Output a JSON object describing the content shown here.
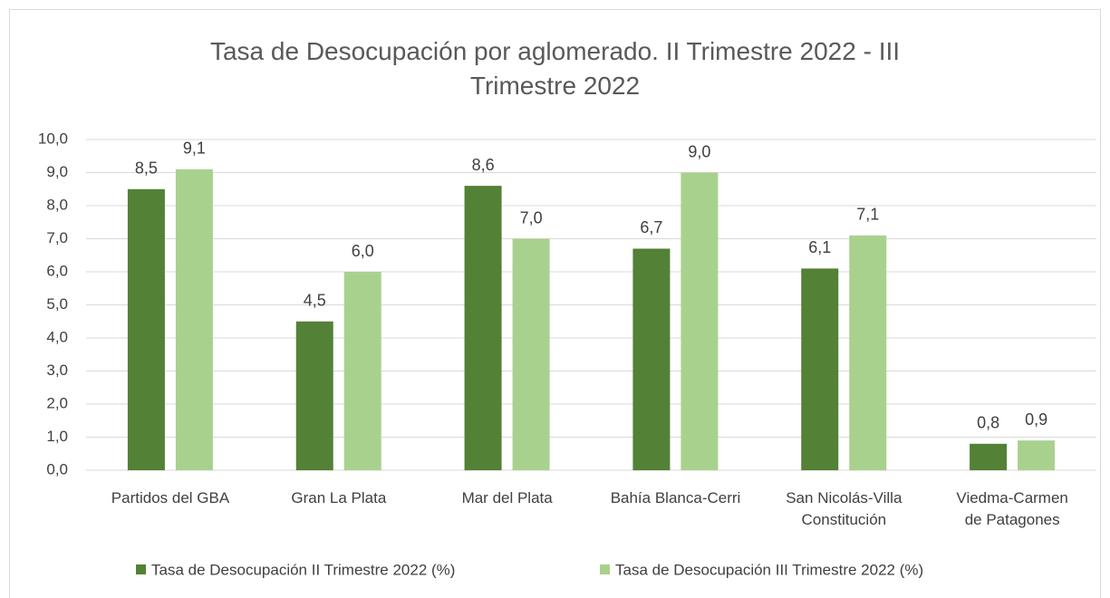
{
  "chart_data": {
    "type": "bar",
    "title": "Tasa de Desocupación  por aglomerado. II Trimestre 2022 - III\nTrimestre 2022",
    "categories": [
      "Partidos del GBA",
      "Gran La Plata",
      "Mar del Plata",
      "Bahía Blanca-Cerri",
      "San Nicolás-Villa\nConstitución",
      "Viedma-Carmen\nde Patagones"
    ],
    "series": [
      {
        "name": "Tasa de Desocupación II Trimestre 2022 (%)",
        "color": "#538135",
        "values": [
          8.5,
          4.5,
          8.6,
          6.7,
          6.1,
          0.8
        ],
        "value_labels": [
          "8,5",
          "4,5",
          "8,6",
          "6,7",
          "6,1",
          "0,8"
        ]
      },
      {
        "name": "Tasa de Desocupación III Trimestre 2022 (%)",
        "color": "#a9d18e",
        "values": [
          9.1,
          6.0,
          7.0,
          9.0,
          7.1,
          0.9
        ],
        "value_labels": [
          "9,1",
          "6,0",
          "7,0",
          "9,0",
          "7,1",
          "0,9"
        ]
      }
    ],
    "ylim": [
      0,
      10
    ],
    "yticks": [
      {
        "value": 0,
        "label": "0,0"
      },
      {
        "value": 1,
        "label": "1,0"
      },
      {
        "value": 2,
        "label": "2,0"
      },
      {
        "value": 3,
        "label": "3,0"
      },
      {
        "value": 4,
        "label": "4,0"
      },
      {
        "value": 5,
        "label": "5,0"
      },
      {
        "value": 6,
        "label": "6,0"
      },
      {
        "value": 7,
        "label": "7,0"
      },
      {
        "value": 8,
        "label": "8,0"
      },
      {
        "value": 9,
        "label": "9,0"
      },
      {
        "value": 10,
        "label": "10,0"
      }
    ],
    "grid": true,
    "legend": "bottom"
  }
}
